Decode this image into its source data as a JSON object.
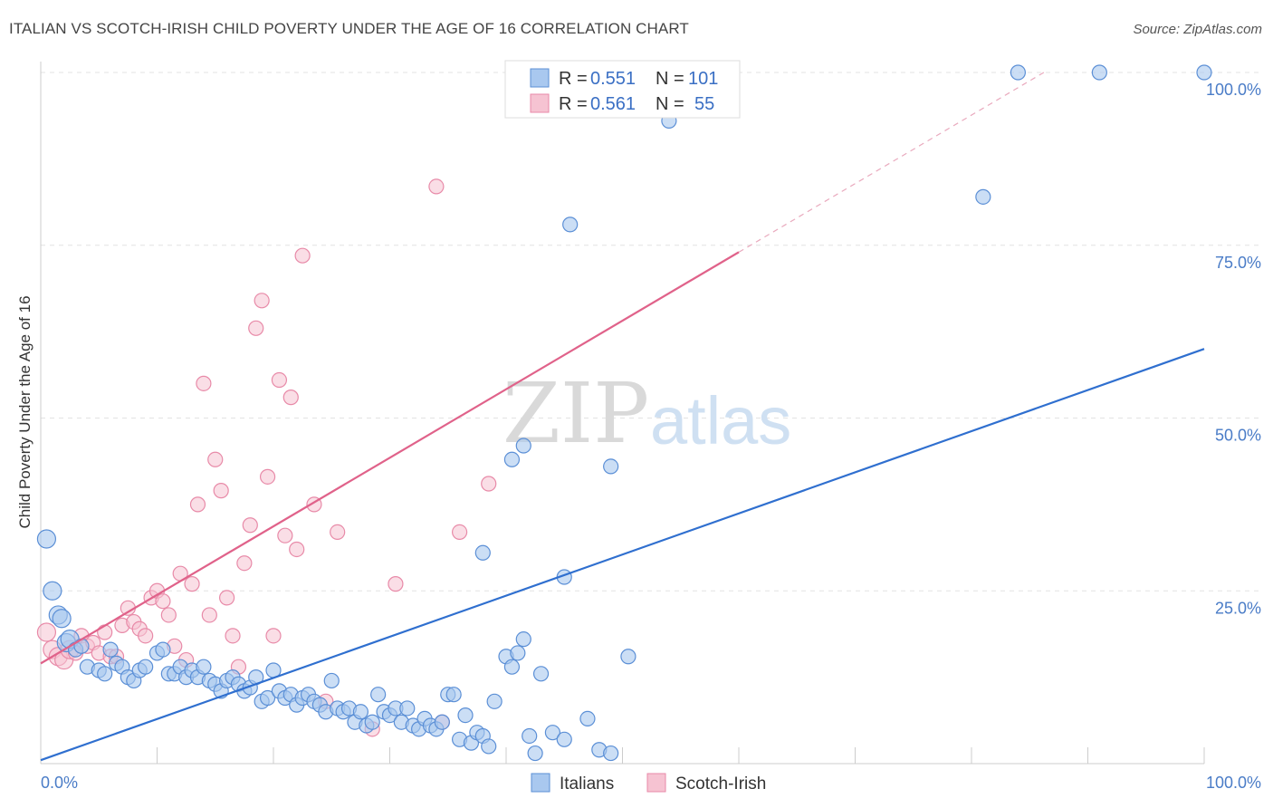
{
  "header": {
    "title": "ITALIAN VS SCOTCH-IRISH CHILD POVERTY UNDER THE AGE OF 16 CORRELATION CHART",
    "source": "Source: ZipAtlas.com"
  },
  "watermark": {
    "zip": "ZIP",
    "atlas": "atlas"
  },
  "legend": {
    "italians": {
      "r_label": "R =",
      "r_value": "0.551",
      "n_label": "N =",
      "n_value": "101"
    },
    "scotch": {
      "r_label": "R =",
      "r_value": "0.561",
      "n_label": "N =",
      "n_value": "55"
    }
  },
  "bottom_legend": [
    "Italians",
    "Scotch-Irish"
  ],
  "colors": {
    "italians_fill": "#a9c8ef",
    "italians_stroke": "#5b8fd6",
    "italians_line": "#2f6fcf",
    "scotch_fill": "#f6c3d2",
    "scotch_stroke": "#e88aa8",
    "scotch_line": "#e0628a"
  },
  "chart_data": {
    "type": "scatter",
    "title": "ITALIAN VS SCOTCH-IRISH CHILD POVERTY UNDER THE AGE OF 16 CORRELATION CHART",
    "xlabel": "",
    "ylabel": "Child Poverty Under the Age of 16",
    "xlim": [
      0,
      100
    ],
    "ylim": [
      0,
      100
    ],
    "x_tick_labels": [
      "0.0%",
      "100.0%"
    ],
    "y_ticks": [
      25,
      50,
      75,
      100
    ],
    "y_tick_labels": [
      "25.0%",
      "50.0%",
      "75.0%",
      "100.0%"
    ],
    "grid": true,
    "legend_position": "top-center",
    "series": [
      {
        "name": "Italians",
        "r": 0.551,
        "n": 101,
        "trend": {
          "x": [
            0,
            100
          ],
          "y": [
            0.5,
            60.0
          ]
        },
        "points": [
          [
            0.5,
            32.5
          ],
          [
            1.0,
            25.0
          ],
          [
            1.5,
            21.5
          ],
          [
            1.8,
            21.0
          ],
          [
            2.2,
            17.5
          ],
          [
            2.5,
            18.0
          ],
          [
            3.0,
            16.5
          ],
          [
            3.5,
            17.0
          ],
          [
            4.0,
            14.0
          ],
          [
            5.0,
            13.5
          ],
          [
            5.5,
            13.0
          ],
          [
            6.0,
            16.5
          ],
          [
            6.5,
            14.5
          ],
          [
            7.0,
            14.0
          ],
          [
            7.5,
            12.5
          ],
          [
            8.0,
            12.0
          ],
          [
            8.5,
            13.5
          ],
          [
            9.0,
            14.0
          ],
          [
            10.0,
            16.0
          ],
          [
            10.5,
            16.5
          ],
          [
            11.0,
            13.0
          ],
          [
            11.5,
            13.0
          ],
          [
            12.0,
            14.0
          ],
          [
            12.5,
            12.5
          ],
          [
            13.0,
            13.5
          ],
          [
            13.5,
            12.5
          ],
          [
            14.0,
            14.0
          ],
          [
            14.5,
            12.0
          ],
          [
            15.0,
            11.5
          ],
          [
            15.5,
            10.5
          ],
          [
            16.0,
            12.0
          ],
          [
            16.5,
            12.5
          ],
          [
            17.0,
            11.5
          ],
          [
            17.5,
            10.5
          ],
          [
            18.0,
            11.0
          ],
          [
            18.5,
            12.5
          ],
          [
            19.0,
            9.0
          ],
          [
            19.5,
            9.5
          ],
          [
            20.0,
            13.5
          ],
          [
            20.5,
            10.5
          ],
          [
            21.0,
            9.5
          ],
          [
            21.5,
            10.0
          ],
          [
            22.0,
            8.5
          ],
          [
            22.5,
            9.5
          ],
          [
            23.0,
            10.0
          ],
          [
            23.5,
            9.0
          ],
          [
            24.0,
            8.5
          ],
          [
            24.5,
            7.5
          ],
          [
            25.0,
            12.0
          ],
          [
            25.5,
            8.0
          ],
          [
            26.0,
            7.5
          ],
          [
            26.5,
            8.0
          ],
          [
            27.0,
            6.0
          ],
          [
            27.5,
            7.5
          ],
          [
            28.0,
            5.5
          ],
          [
            28.5,
            6.0
          ],
          [
            29.0,
            10.0
          ],
          [
            29.5,
            7.5
          ],
          [
            30.0,
            7.0
          ],
          [
            30.5,
            8.0
          ],
          [
            31.0,
            6.0
          ],
          [
            31.5,
            8.0
          ],
          [
            32.0,
            5.5
          ],
          [
            32.5,
            5.0
          ],
          [
            33.0,
            6.5
          ],
          [
            33.5,
            5.5
          ],
          [
            34.0,
            5.0
          ],
          [
            34.5,
            6.0
          ],
          [
            35.0,
            10.0
          ],
          [
            35.5,
            10.0
          ],
          [
            36.0,
            3.5
          ],
          [
            36.5,
            7.0
          ],
          [
            37.0,
            3.0
          ],
          [
            37.5,
            4.5
          ],
          [
            38.0,
            4.0
          ],
          [
            38.5,
            2.5
          ],
          [
            39.0,
            9.0
          ],
          [
            40.0,
            15.5
          ],
          [
            40.5,
            14.0
          ],
          [
            41.0,
            16.0
          ],
          [
            41.5,
            18.0
          ],
          [
            42.0,
            4.0
          ],
          [
            42.5,
            1.5
          ],
          [
            43.0,
            13.0
          ],
          [
            44.0,
            4.5
          ],
          [
            45.0,
            3.5
          ],
          [
            47.0,
            6.5
          ],
          [
            48.0,
            2.0
          ],
          [
            49.0,
            1.5
          ],
          [
            50.5,
            15.5
          ],
          [
            38.0,
            30.5
          ],
          [
            40.5,
            44.0
          ],
          [
            41.5,
            46.0
          ],
          [
            49.0,
            43.0
          ],
          [
            45.0,
            27.0
          ],
          [
            45.5,
            78.0
          ],
          [
            54.0,
            93.0
          ],
          [
            84.0,
            100.0
          ],
          [
            81.0,
            82.0
          ],
          [
            91.0,
            100.0
          ],
          [
            100.0,
            100.0
          ]
        ]
      },
      {
        "name": "Scotch-Irish",
        "r": 0.561,
        "n": 55,
        "trend": {
          "x": [
            0,
            60
          ],
          "y": [
            14.5,
            74.0
          ]
        },
        "points": [
          [
            0.5,
            19.0
          ],
          [
            1.0,
            16.5
          ],
          [
            1.5,
            15.5
          ],
          [
            2.0,
            15.0
          ],
          [
            2.5,
            16.5
          ],
          [
            3.0,
            16.0
          ],
          [
            3.5,
            18.5
          ],
          [
            4.0,
            17.0
          ],
          [
            4.5,
            17.5
          ],
          [
            5.0,
            16.0
          ],
          [
            5.5,
            19.0
          ],
          [
            6.0,
            15.5
          ],
          [
            6.5,
            15.5
          ],
          [
            7.0,
            20.0
          ],
          [
            7.5,
            22.5
          ],
          [
            8.0,
            20.5
          ],
          [
            8.5,
            19.5
          ],
          [
            9.0,
            18.5
          ],
          [
            9.5,
            24.0
          ],
          [
            10.0,
            25.0
          ],
          [
            10.5,
            23.5
          ],
          [
            11.0,
            21.5
          ],
          [
            11.5,
            17.0
          ],
          [
            12.0,
            27.5
          ],
          [
            12.5,
            15.0
          ],
          [
            13.0,
            26.0
          ],
          [
            13.5,
            37.5
          ],
          [
            14.0,
            55.0
          ],
          [
            14.5,
            21.5
          ],
          [
            15.0,
            44.0
          ],
          [
            15.5,
            39.5
          ],
          [
            16.0,
            24.0
          ],
          [
            16.5,
            18.5
          ],
          [
            17.0,
            14.0
          ],
          [
            17.5,
            29.0
          ],
          [
            18.0,
            34.5
          ],
          [
            18.5,
            63.0
          ],
          [
            19.0,
            67.0
          ],
          [
            19.5,
            41.5
          ],
          [
            20.0,
            18.5
          ],
          [
            20.5,
            55.5
          ],
          [
            21.0,
            33.0
          ],
          [
            21.5,
            53.0
          ],
          [
            22.0,
            31.0
          ],
          [
            22.5,
            73.5
          ],
          [
            23.5,
            37.5
          ],
          [
            24.5,
            9.0
          ],
          [
            25.5,
            33.5
          ],
          [
            28.5,
            5.0
          ],
          [
            30.5,
            26.0
          ],
          [
            34.0,
            83.5
          ],
          [
            34.5,
            6.0
          ],
          [
            36.0,
            33.5
          ],
          [
            38.5,
            40.5
          ],
          [
            53.5,
            100.0
          ]
        ]
      }
    ]
  }
}
